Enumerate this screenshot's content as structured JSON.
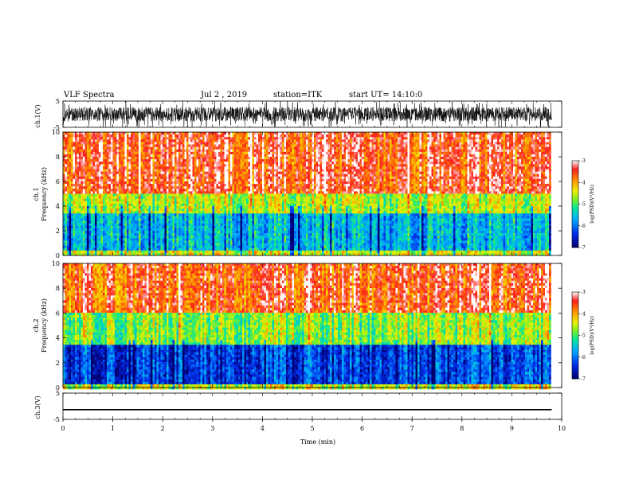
{
  "header": {
    "title": "VLF Spectra",
    "date": "Jul 2 , 2019",
    "station": "station=ITK",
    "start": "start UT=   14:10:0"
  },
  "chart_data": [
    {
      "type": "line",
      "panel": "ch1-waveform",
      "ylabel": "ch.1(V)",
      "ylim": [
        -5,
        5
      ],
      "yticks": [
        "5",
        "-5"
      ],
      "color": "#000000",
      "note_values": "dense noisy waveform spanning about -4 to 4 V with frequent spikes to +/-5 V"
    },
    {
      "type": "heatmap",
      "panel": "ch1-spectrogram",
      "ylabel": "Frequency (kHz)",
      "ylabel_prefix": "ch.1",
      "ylim": [
        0,
        10
      ],
      "yticks": [
        "0",
        "2",
        "4",
        "6",
        "8",
        "10"
      ],
      "colorbar": {
        "label": "log(PSD)(V²/Hz)",
        "ticks": [
          "-3",
          "-4",
          "-5",
          "-6",
          "-7"
        ],
        "range": [
          -7,
          -3
        ]
      },
      "bands": [
        {
          "from_khz": 0,
          "to_khz": 0.5,
          "level": -4.5
        },
        {
          "from_khz": 0.5,
          "to_khz": 3.5,
          "level": -5.6
        },
        {
          "from_khz": 3.5,
          "to_khz": 5,
          "level": -4.6
        },
        {
          "from_khz": 5,
          "to_khz": 10,
          "level": -3.5
        }
      ]
    },
    {
      "type": "heatmap",
      "panel": "ch2-spectrogram",
      "ylabel": "Frequency (kHz)",
      "ylabel_prefix": "ch.2",
      "ylim": [
        0,
        10
      ],
      "yticks": [
        "0",
        "2",
        "4",
        "6",
        "8",
        "10"
      ],
      "colorbar": {
        "label": "log(PSD)(V²/Hz)",
        "ticks": [
          "-3",
          "-4",
          "-5",
          "-6",
          "-7"
        ],
        "range": [
          -7,
          -3
        ]
      },
      "bands": [
        {
          "from_khz": 0,
          "to_khz": 0.3,
          "level": -4.5
        },
        {
          "from_khz": 0.3,
          "to_khz": 3.5,
          "level": -6.3
        },
        {
          "from_khz": 3.5,
          "to_khz": 6,
          "level": -4.8
        },
        {
          "from_khz": 6,
          "to_khz": 10,
          "level": -3.6
        }
      ]
    },
    {
      "type": "line",
      "panel": "ch3-waveform",
      "ylabel": "ch.3(V)",
      "ylim": [
        -5,
        5
      ],
      "yticks": [
        "5",
        "-5"
      ],
      "x": [
        0,
        9.8
      ],
      "y": [
        -1.3,
        -1.3
      ],
      "color": "#000000"
    }
  ],
  "xaxis": {
    "label": "Time (min)",
    "ticks": [
      "0",
      "1",
      "2",
      "3",
      "4",
      "5",
      "6",
      "7",
      "8",
      "9",
      "10"
    ],
    "range": [
      0,
      10
    ],
    "data_end": 9.8
  }
}
